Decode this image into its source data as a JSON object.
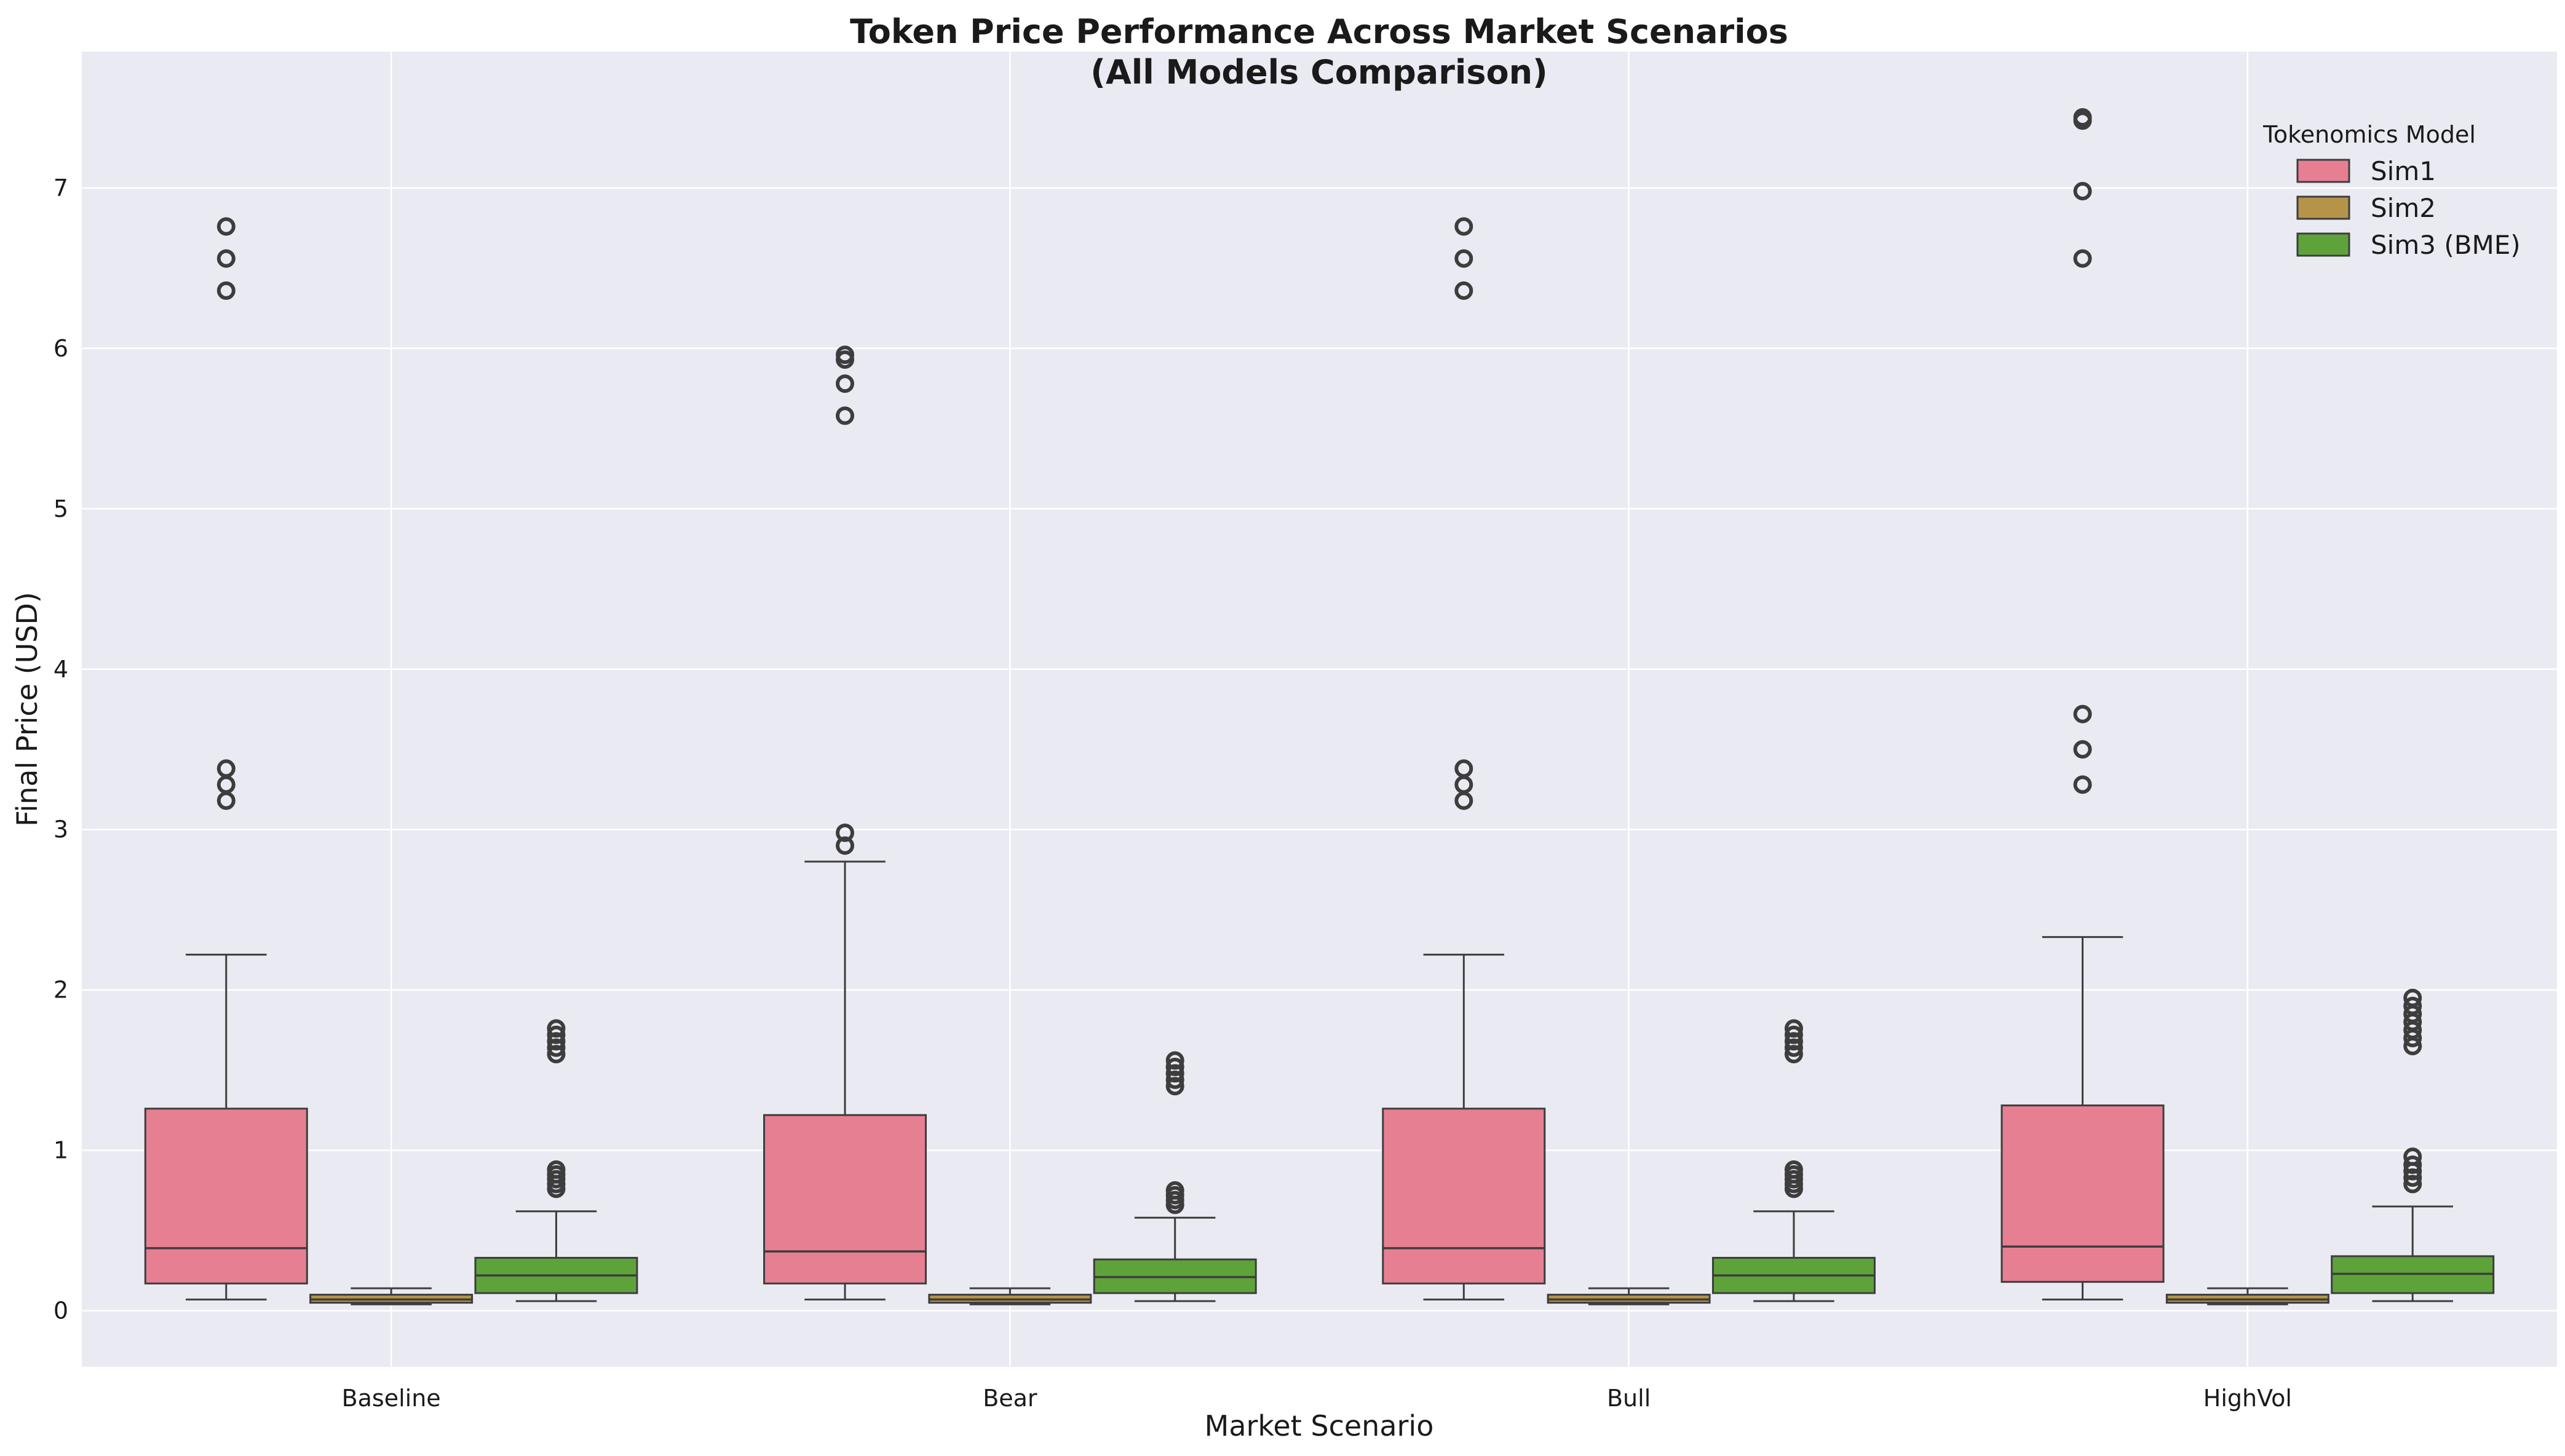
{
  "chart_data": {
    "type": "box",
    "title": "Token Price Performance Across Market Scenarios",
    "subtitle": "(All Models Comparison)",
    "xlabel": "Market Scenario",
    "ylabel": "Final Price (USD)",
    "categories": [
      "Baseline",
      "Bear",
      "Bull",
      "HighVol"
    ],
    "ylim": [
      -0.35,
      7.85
    ],
    "yticks": [
      0,
      1,
      2,
      3,
      4,
      5,
      6,
      7
    ],
    "grid": true,
    "legend": {
      "title": "Tokenomics Model",
      "position": "top-right"
    },
    "series": [
      {
        "name": "Sim1",
        "color": "#e77f92",
        "boxes": [
          {
            "whisker_low": 0.07,
            "q1": 0.17,
            "median": 0.39,
            "q3": 1.26,
            "whisker_high": 2.22,
            "outliers": [
              3.18,
              3.28,
              3.38,
              6.36,
              6.56,
              6.76
            ]
          },
          {
            "whisker_low": 0.07,
            "q1": 0.17,
            "median": 0.37,
            "q3": 1.22,
            "whisker_high": 2.8,
            "outliers": [
              2.9,
              2.98,
              5.58,
              5.78,
              5.93,
              5.96
            ]
          },
          {
            "whisker_low": 0.07,
            "q1": 0.17,
            "median": 0.39,
            "q3": 1.26,
            "whisker_high": 2.22,
            "outliers": [
              3.18,
              3.28,
              3.38,
              6.36,
              6.56,
              6.76
            ]
          },
          {
            "whisker_low": 0.07,
            "q1": 0.18,
            "median": 0.4,
            "q3": 1.28,
            "whisker_high": 2.33,
            "outliers": [
              3.28,
              3.5,
              3.72,
              6.56,
              6.98,
              7.42,
              7.44
            ]
          }
        ]
      },
      {
        "name": "Sim2",
        "color": "#b5944a",
        "boxes": [
          {
            "whisker_low": 0.04,
            "q1": 0.05,
            "median": 0.07,
            "q3": 0.1,
            "whisker_high": 0.14,
            "outliers": []
          },
          {
            "whisker_low": 0.04,
            "q1": 0.05,
            "median": 0.07,
            "q3": 0.1,
            "whisker_high": 0.14,
            "outliers": []
          },
          {
            "whisker_low": 0.04,
            "q1": 0.05,
            "median": 0.07,
            "q3": 0.1,
            "whisker_high": 0.14,
            "outliers": []
          },
          {
            "whisker_low": 0.04,
            "q1": 0.05,
            "median": 0.07,
            "q3": 0.1,
            "whisker_high": 0.14,
            "outliers": []
          }
        ]
      },
      {
        "name": "Sim3 (BME)",
        "color": "#5ea33a",
        "boxes": [
          {
            "whisker_low": 0.06,
            "q1": 0.11,
            "median": 0.22,
            "q3": 0.33,
            "whisker_high": 0.62,
            "outliers": [
              0.76,
              0.79,
              0.82,
              0.85,
              0.88,
              1.6,
              1.64,
              1.68,
              1.72,
              1.76
            ]
          },
          {
            "whisker_low": 0.06,
            "q1": 0.11,
            "median": 0.21,
            "q3": 0.32,
            "whisker_high": 0.58,
            "outliers": [
              0.66,
              0.69,
              0.72,
              0.75,
              1.4,
              1.44,
              1.48,
              1.52,
              1.56
            ]
          },
          {
            "whisker_low": 0.06,
            "q1": 0.11,
            "median": 0.22,
            "q3": 0.33,
            "whisker_high": 0.62,
            "outliers": [
              0.76,
              0.79,
              0.82,
              0.85,
              0.88,
              1.6,
              1.64,
              1.68,
              1.72,
              1.76
            ]
          },
          {
            "whisker_low": 0.06,
            "q1": 0.11,
            "median": 0.23,
            "q3": 0.34,
            "whisker_high": 0.65,
            "outliers": [
              0.79,
              0.83,
              0.87,
              0.91,
              0.96,
              1.65,
              1.7,
              1.75,
              1.8,
              1.85,
              1.9,
              1.95
            ]
          }
        ]
      }
    ]
  }
}
